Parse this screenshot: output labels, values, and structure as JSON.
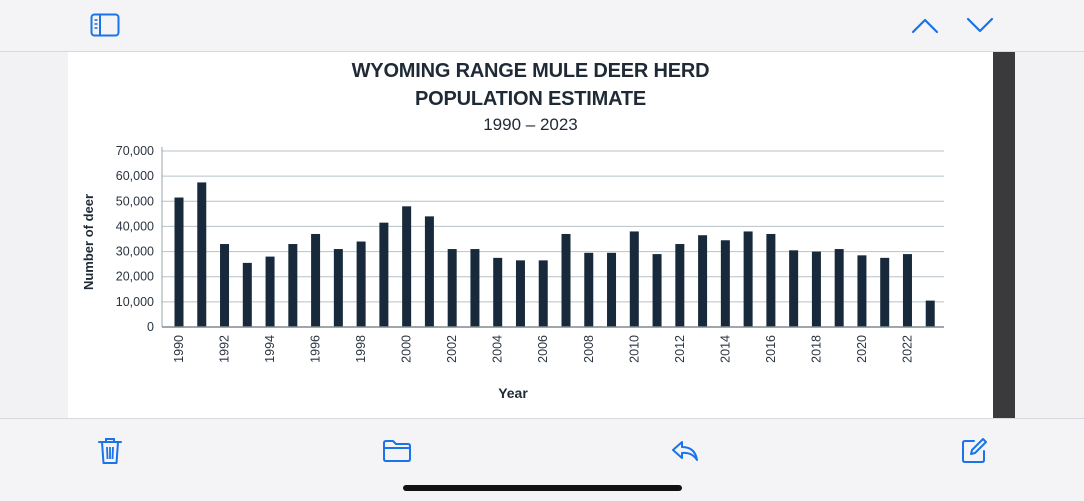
{
  "toolbar_top": {
    "sidebar_icon": "sidebar-icon",
    "prev_icon": "chevron-up-icon",
    "next_icon": "chevron-down-icon",
    "accent_color": "#1a73e8"
  },
  "toolbar_bottom": {
    "trash_icon": "trash-icon",
    "folder_icon": "folder-icon",
    "reply_icon": "reply-icon",
    "compose_icon": "compose-icon"
  },
  "chart_data": {
    "type": "bar",
    "title_line1": "WYOMING RANGE MULE DEER HERD",
    "title_line2": "POPULATION ESTIMATE",
    "subtitle": "1990 – 2023",
    "xlabel": "Year",
    "ylabel": "Number of deer",
    "ylim": [
      0,
      70000
    ],
    "yticks": [
      "0",
      "10,000",
      "20,000",
      "30,000",
      "40,000",
      "50,000",
      "60,000",
      "70,000"
    ],
    "grid": true,
    "bar_color": "#17293a",
    "categories": [
      "1990",
      "1991",
      "1992",
      "1993",
      "1994",
      "1995",
      "1996",
      "1997",
      "1998",
      "1999",
      "2000",
      "2001",
      "2002",
      "2003",
      "2004",
      "2005",
      "2006",
      "2007",
      "2008",
      "2009",
      "2010",
      "2011",
      "2012",
      "2013",
      "2014",
      "2015",
      "2016",
      "2017",
      "2018",
      "2019",
      "2020",
      "2021",
      "2022",
      "2023"
    ],
    "xtick_labels": [
      "1990",
      "",
      "1992",
      "",
      "1994",
      "",
      "1996",
      "",
      "1998",
      "",
      "2000",
      "",
      "2002",
      "",
      "2004",
      "",
      "2006",
      "",
      "2008",
      "",
      "2010",
      "",
      "2012",
      "",
      "2014",
      "",
      "2016",
      "",
      "2018",
      "",
      "2020",
      "",
      "2022",
      ""
    ],
    "values": [
      51500,
      57500,
      33000,
      25500,
      28000,
      33000,
      37000,
      31000,
      34000,
      41500,
      48000,
      44000,
      31000,
      31000,
      27500,
      26500,
      26500,
      37000,
      29500,
      29500,
      38000,
      29000,
      33000,
      36500,
      34500,
      38000,
      37000,
      30500,
      30000,
      31000,
      28500,
      27500,
      29000,
      10500
    ]
  }
}
